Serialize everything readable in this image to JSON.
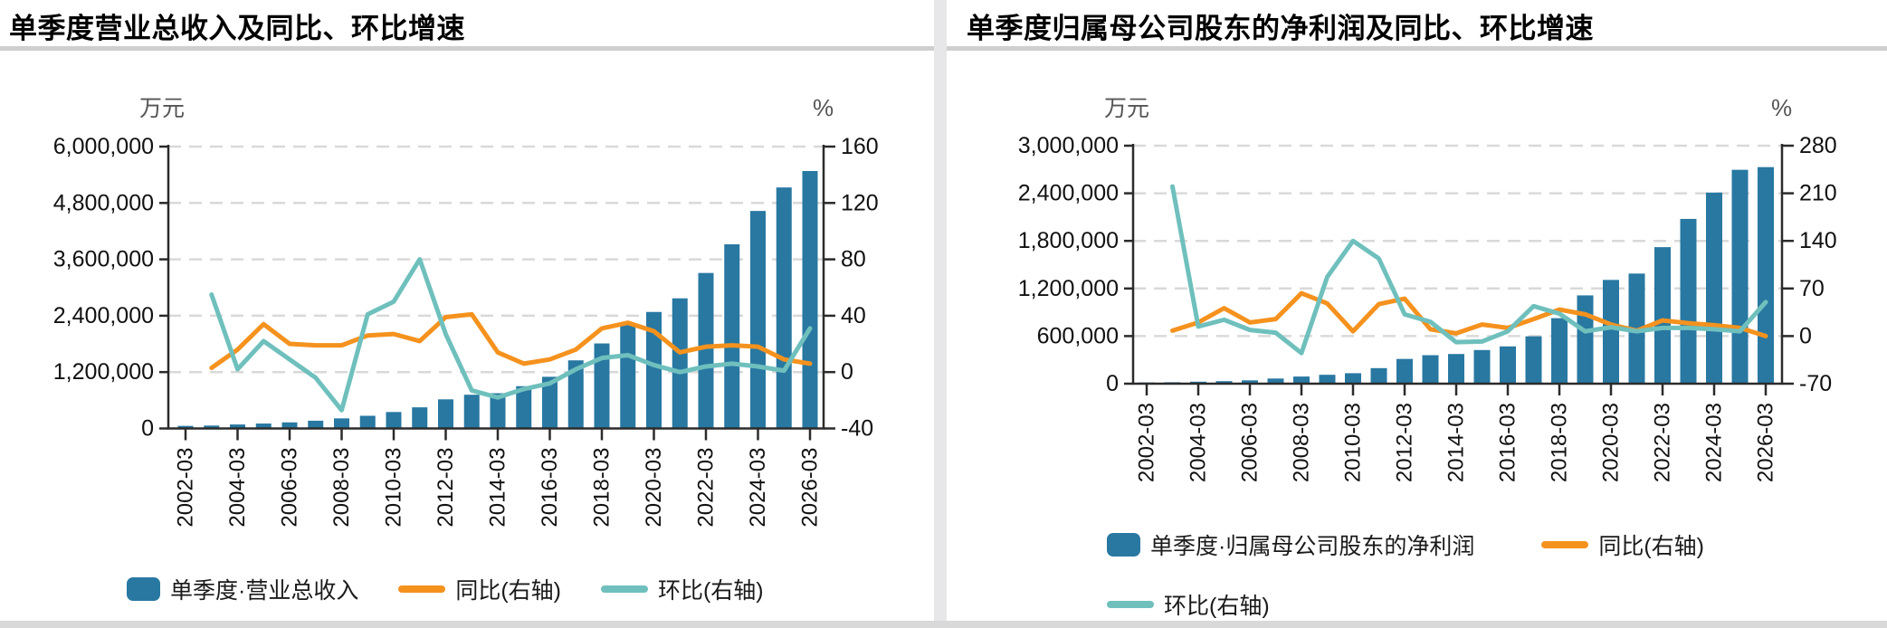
{
  "page": {
    "divider_color": "#e7e7e9",
    "bottom_bar_color": "#d9d9d9",
    "title_rule_color": "#cfcfcf"
  },
  "colors": {
    "bar": "#2878a2",
    "yoy_line": "#f5921e",
    "qoq_line": "#6fc0bd",
    "grid": "#d9d9d9",
    "axis": "#2b2b2b",
    "tick_text": "#111111",
    "unit_text": "#555555"
  },
  "chart_data": [
    {
      "type": "bar",
      "subtype": "combo-bar-line-dual-axis",
      "title": "单季度营业总收入及同比、环比增速",
      "unit_left": "万元",
      "unit_right": "%",
      "categories": [
        "2002-03",
        "2003-03",
        "2004-03",
        "2005-03",
        "2006-03",
        "2007-03",
        "2008-03",
        "2009-03",
        "2010-03",
        "2011-03",
        "2012-03",
        "2013-03",
        "2014-03",
        "2015-03",
        "2016-03",
        "2017-03",
        "2018-03",
        "2019-03",
        "2020-03",
        "2021-03",
        "2022-03",
        "2023-03",
        "2024-03",
        "2025-03",
        "2026-03"
      ],
      "x_tick_labels": [
        "2002-03",
        "2004-03",
        "2006-03",
        "2008-03",
        "2010-03",
        "2012-03",
        "2014-03",
        "2016-03",
        "2018-03",
        "2020-03",
        "2022-03",
        "2024-03",
        "2026-03"
      ],
      "left_axis": {
        "title": "万元",
        "min": 0,
        "max": 6000000,
        "tick_values": [
          6000000,
          4800000,
          3600000,
          2400000,
          1200000,
          0
        ],
        "tick_labels": [
          "6,000,000",
          "4,800,000",
          "3,600,000",
          "2,400,000",
          "1,200,000",
          "0"
        ]
      },
      "right_axis": {
        "title": "%",
        "min": -40,
        "max": 160,
        "tick_values": [
          160,
          120,
          80,
          40,
          0,
          -40
        ],
        "tick_labels": [
          "160",
          "120",
          "80",
          "40",
          "0",
          "-40"
        ]
      },
      "series": [
        {
          "name": "单季度·营业总收入",
          "type": "bar",
          "axis": "left",
          "values": [
            55000,
            62000,
            85000,
            105000,
            130000,
            165000,
            215000,
            270000,
            350000,
            450000,
            620000,
            718000,
            750000,
            900000,
            1100000,
            1450000,
            1810000,
            2210000,
            2480000,
            2770000,
            3310000,
            3920000,
            4630000,
            5130000,
            5480000
          ]
        },
        {
          "name": "同比(右轴)",
          "type": "line",
          "axis": "right",
          "values": [
            null,
            3,
            16,
            34,
            20,
            19,
            19,
            26,
            27,
            22,
            39,
            41,
            14,
            6,
            9,
            16,
            31,
            35,
            29,
            14,
            18,
            19,
            18,
            9,
            6
          ]
        },
        {
          "name": "环比(右轴)",
          "type": "line",
          "axis": "right",
          "values": [
            null,
            55,
            2,
            22,
            9,
            -4,
            -27,
            41,
            50,
            80,
            27,
            -13,
            -18,
            -12,
            -8,
            2,
            10,
            12,
            5,
            0,
            4,
            6,
            4,
            1,
            31
          ]
        }
      ],
      "grid": "horizontal-dashed",
      "legend_position": "bottom"
    },
    {
      "type": "bar",
      "subtype": "combo-bar-line-dual-axis",
      "title": "单季度归属母公司股东的净利润及同比、环比增速",
      "unit_left": "万元",
      "unit_right": "%",
      "categories": [
        "2002-03",
        "2003-03",
        "2004-03",
        "2005-03",
        "2006-03",
        "2007-03",
        "2008-03",
        "2009-03",
        "2010-03",
        "2011-03",
        "2012-03",
        "2013-03",
        "2014-03",
        "2015-03",
        "2016-03",
        "2017-03",
        "2018-03",
        "2019-03",
        "2020-03",
        "2021-03",
        "2022-03",
        "2023-03",
        "2024-03",
        "2025-03",
        "2026-03"
      ],
      "x_tick_labels": [
        "2002-03",
        "2004-03",
        "2006-03",
        "2008-03",
        "2010-03",
        "2012-03",
        "2014-03",
        "2016-03",
        "2018-03",
        "2020-03",
        "2022-03",
        "2024-03",
        "2026-03"
      ],
      "left_axis": {
        "title": "万元",
        "min": 0,
        "max": 3000000,
        "tick_values": [
          3000000,
          2400000,
          1800000,
          1200000,
          600000,
          0
        ],
        "tick_labels": [
          "3,000,000",
          "2,400,000",
          "1,800,000",
          "1,200,000",
          "600,000",
          "0"
        ]
      },
      "right_axis": {
        "title": "%",
        "min": -70,
        "max": 280,
        "tick_values": [
          280,
          210,
          140,
          70,
          0,
          -70
        ],
        "tick_labels": [
          "280",
          "210",
          "140",
          "70",
          "0",
          "-70"
        ]
      },
      "series": [
        {
          "name": "单季度·归属母公司股东的净利润",
          "type": "bar",
          "axis": "left",
          "values": [
            15000,
            18000,
            25000,
            32000,
            42000,
            65000,
            90000,
            112000,
            132000,
            196000,
            312000,
            359000,
            374000,
            424000,
            470000,
            597000,
            826000,
            1113000,
            1308000,
            1388000,
            1721000,
            2077000,
            2409000,
            2696000,
            2730000
          ]
        },
        {
          "name": "同比(右轴)",
          "type": "line",
          "axis": "right",
          "values": [
            null,
            8,
            20,
            41,
            20,
            25,
            63,
            48,
            7,
            47,
            55,
            10,
            4,
            17,
            12,
            25,
            39,
            32,
            17,
            8,
            23,
            19,
            16,
            12,
            0
          ]
        },
        {
          "name": "环比(右轴)",
          "type": "line",
          "axis": "right",
          "values": [
            null,
            220,
            14,
            24,
            9,
            5,
            -25,
            87,
            140,
            114,
            32,
            21,
            -9,
            -8,
            7,
            44,
            33,
            7,
            13,
            7,
            12,
            12,
            10,
            7,
            50
          ]
        }
      ],
      "grid": "horizontal-dashed",
      "legend_position": "bottom"
    }
  ]
}
